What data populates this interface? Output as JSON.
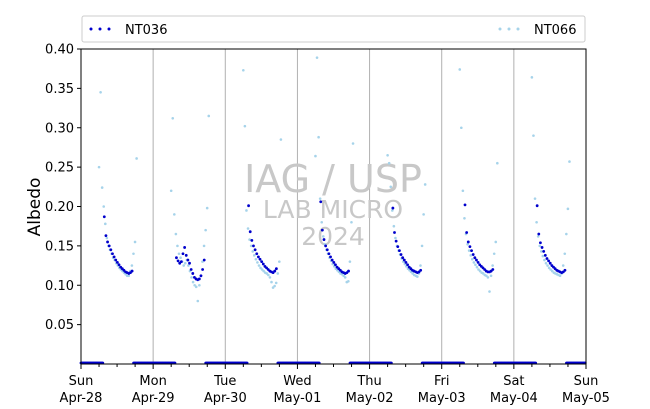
{
  "chart_data": {
    "type": "scatter",
    "title": "",
    "xlabel": "",
    "ylabel": "Albedo",
    "ylim": [
      0.0,
      0.4
    ],
    "xlim": [
      "2024-04-28",
      "2024-05-05"
    ],
    "y_ticks": [
      "0.05",
      "0.10",
      "0.15",
      "0.20",
      "0.25",
      "0.30",
      "0.35",
      "0.40"
    ],
    "x_ticks": [
      {
        "day": "Sun",
        "date": "Apr-28"
      },
      {
        "day": "Mon",
        "date": "Apr-29"
      },
      {
        "day": "Tue",
        "date": "Apr-30"
      },
      {
        "day": "Wed",
        "date": "May-01"
      },
      {
        "day": "Thu",
        "date": "May-02"
      },
      {
        "day": "Fri",
        "date": "May-03"
      },
      {
        "day": "Sat",
        "date": "May-04"
      },
      {
        "day": "Sun",
        "date": "May-05"
      }
    ],
    "grid": "vertical at day boundaries",
    "legend": {
      "placement": "top",
      "entries": [
        "NT036",
        "NT066"
      ]
    },
    "watermark": {
      "line1": "IAG / USP",
      "line2": "LAB MICRO",
      "line3": "2024"
    },
    "series": [
      {
        "name": "NT036",
        "color": "#0000cc",
        "days": [
          {
            "start": "07:45",
            "end": "17:00",
            "values": [
              0.187,
              0.163,
              0.155,
              0.15,
              0.145,
              0.14,
              0.136,
              0.132,
              0.129,
              0.126,
              0.123,
              0.121,
              0.119,
              0.117,
              0.116,
              0.115,
              0.116,
              0.118
            ]
          },
          {
            "start": "07:45",
            "end": "17:00",
            "values": [
              0.135,
              0.131,
              0.128,
              0.13,
              0.14,
              0.148,
              0.138,
              0.132,
              0.128,
              0.12,
              0.115,
              0.11,
              0.108,
              0.107,
              0.108,
              0.112,
              0.12,
              0.132
            ]
          },
          {
            "start": "07:45",
            "end": "17:00",
            "values": [
              0.201,
              0.168,
              0.157,
              0.15,
              0.145,
              0.14,
              0.136,
              0.133,
              0.13,
              0.127,
              0.124,
              0.122,
              0.12,
              0.118,
              0.117,
              0.116,
              0.118,
              0.121
            ]
          },
          {
            "start": "07:45",
            "end": "17:00",
            "values": [
              0.206,
              0.17,
              0.158,
              0.15,
              0.145,
              0.14,
              0.136,
              0.132,
              0.129,
              0.126,
              0.123,
              0.121,
              0.119,
              0.117,
              0.116,
              0.115,
              0.116,
              0.118
            ]
          },
          {
            "start": "07:45",
            "end": "17:00",
            "values": [
              0.198,
              0.167,
              0.156,
              0.149,
              0.144,
              0.139,
              0.135,
              0.132,
              0.129,
              0.126,
              0.123,
              0.121,
              0.119,
              0.118,
              0.117,
              0.116,
              0.117,
              0.119
            ]
          },
          {
            "start": "07:45",
            "end": "17:00",
            "values": [
              0.202,
              0.167,
              0.155,
              0.149,
              0.144,
              0.139,
              0.135,
              0.132,
              0.129,
              0.126,
              0.124,
              0.122,
              0.12,
              0.118,
              0.117,
              0.117,
              0.118,
              0.12
            ]
          },
          {
            "start": "07:45",
            "end": "17:00",
            "values": [
              0.201,
              0.165,
              0.154,
              0.148,
              0.143,
              0.138,
              0.134,
              0.131,
              0.128,
              0.125,
              0.123,
              0.121,
              0.119,
              0.118,
              0.117,
              0.116,
              0.117,
              0.119
            ]
          }
        ]
      },
      {
        "name": "NT066",
        "color": "#a6d3ea",
        "days": [
          {
            "start": "06:00",
            "end": "18:30",
            "values": [
              0.25,
              0.345,
              0.224,
              0.2,
              0.178,
              0.16,
              0.15,
              0.145,
              0.14,
              0.135,
              0.132,
              0.128,
              0.125,
              0.122,
              0.12,
              0.118,
              0.116,
              0.114,
              0.112,
              0.112,
              0.118,
              0.125,
              0.14,
              0.155,
              0.261
            ]
          },
          {
            "start": "06:00",
            "end": "18:30",
            "values": [
              0.22,
              0.312,
              0.19,
              0.165,
              0.15,
              0.14,
              0.135,
              0.13,
              0.125,
              0.128,
              0.132,
              0.125,
              0.118,
              0.11,
              0.104,
              0.1,
              0.098,
              0.08,
              0.1,
              0.112,
              0.13,
              0.15,
              0.17,
              0.198,
              0.315
            ]
          },
          {
            "start": "06:00",
            "end": "18:30",
            "values": [
              0.373,
              0.302,
              0.195,
              0.172,
              0.158,
              0.15,
              0.143,
              0.138,
              0.133,
              0.129,
              0.125,
              0.122,
              0.12,
              0.118,
              0.116,
              0.115,
              0.113,
              0.11,
              0.104,
              0.097,
              0.099,
              0.103,
              0.115,
              0.13,
              0.285
            ]
          },
          {
            "start": "06:00",
            "end": "18:30",
            "values": [
              0.264,
              0.389,
              0.288,
              0.21,
              0.18,
              0.162,
              0.152,
              0.145,
              0.14,
              0.135,
              0.131,
              0.127,
              0.124,
              0.121,
              0.119,
              0.117,
              0.115,
              0.114,
              0.112,
              0.11,
              0.104,
              0.105,
              0.13,
              0.18,
              0.28
            ]
          },
          {
            "start": "06:00",
            "end": "18:30",
            "values": [
              0.265,
              0.255,
              0.225,
              0.195,
              0.175,
              0.16,
              0.15,
              0.144,
              0.139,
              0.134,
              0.13,
              0.127,
              0.124,
              0.121,
              0.119,
              0.117,
              0.115,
              0.113,
              0.112,
              0.111,
              0.115,
              0.125,
              0.15,
              0.19,
              0.228
            ]
          },
          {
            "start": "06:00",
            "end": "18:30",
            "values": [
              0.374,
              0.3,
              0.22,
              0.185,
              0.165,
              0.152,
              0.144,
              0.138,
              0.133,
              0.129,
              0.126,
              0.123,
              0.12,
              0.118,
              0.116,
              0.115,
              0.113,
              0.112,
              0.11,
              0.092,
              0.112,
              0.125,
              0.14,
              0.155,
              0.255
            ]
          },
          {
            "start": "06:00",
            "end": "18:30",
            "values": [
              0.364,
              0.29,
              0.21,
              0.18,
              0.162,
              0.15,
              0.143,
              0.137,
              0.132,
              0.128,
              0.125,
              0.122,
              0.12,
              0.118,
              0.116,
              0.115,
              0.114,
              0.113,
              0.112,
              0.115,
              0.125,
              0.14,
              0.165,
              0.197,
              0.257
            ]
          }
        ]
      }
    ],
    "night_value": 0.0
  }
}
